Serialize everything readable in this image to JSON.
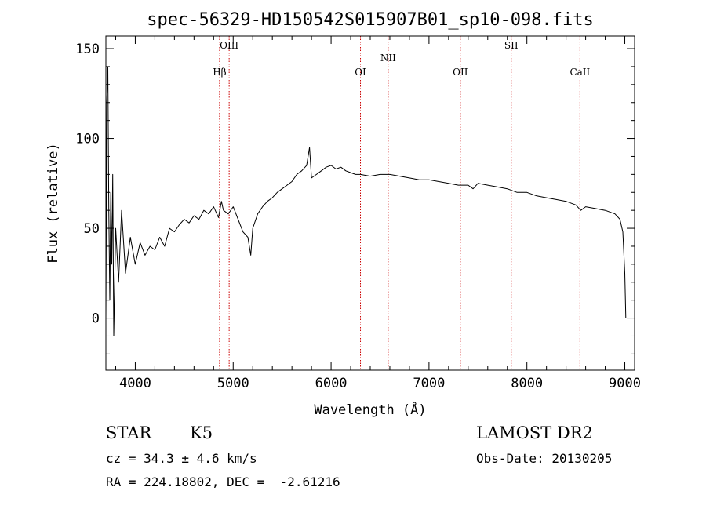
{
  "chart_data": {
    "type": "line",
    "title": "spec-56329-HD150542S015907B01_sp10-098.fits",
    "xlabel": "Wavelength (Å)",
    "ylabel": "Flux (relative)",
    "xlim": [
      3700,
      9100
    ],
    "ylim": [
      -29,
      157
    ],
    "xticks": [
      4000,
      5000,
      6000,
      7000,
      8000,
      9000
    ],
    "yticks": [
      0,
      50,
      100,
      150
    ],
    "grid": false,
    "line_color": "#000000",
    "marker_color": "#cc0000",
    "series": [
      {
        "x": [
          3700,
          3710,
          3720,
          3730,
          3740,
          3750,
          3760,
          3770,
          3780,
          3800,
          3830,
          3860,
          3900,
          3950,
          4000,
          4050,
          4100,
          4150,
          4200,
          4250,
          4300,
          4350,
          4400,
          4450,
          4500,
          4550,
          4600,
          4650,
          4700,
          4750,
          4800,
          4850,
          4880,
          4900,
          4950,
          5000,
          5050,
          5100,
          5150,
          5180,
          5200,
          5250,
          5300,
          5350,
          5400,
          5450,
          5500,
          5550,
          5600,
          5650,
          5700,
          5750,
          5780,
          5800,
          5850,
          5900,
          5950,
          6000,
          6050,
          6100,
          6150,
          6200,
          6250,
          6300,
          6400,
          6500,
          6600,
          6700,
          6800,
          6900,
          7000,
          7100,
          7200,
          7300,
          7400,
          7450,
          7500,
          7600,
          7700,
          7800,
          7900,
          8000,
          8100,
          8200,
          8300,
          8400,
          8500,
          8550,
          8600,
          8700,
          8800,
          8900,
          8950,
          8980,
          9000,
          9010
        ],
        "y": [
          0,
          120,
          140,
          60,
          10,
          70,
          30,
          80,
          -10,
          50,
          20,
          60,
          25,
          45,
          30,
          42,
          35,
          40,
          38,
          45,
          40,
          50,
          48,
          52,
          55,
          53,
          57,
          55,
          60,
          58,
          62,
          56,
          65,
          60,
          58,
          62,
          55,
          48,
          45,
          35,
          50,
          58,
          62,
          65,
          67,
          70,
          72,
          74,
          76,
          80,
          82,
          85,
          95,
          78,
          80,
          82,
          84,
          85,
          83,
          84,
          82,
          81,
          80,
          80,
          79,
          80,
          80,
          79,
          78,
          77,
          77,
          76,
          75,
          74,
          74,
          72,
          75,
          74,
          73,
          72,
          70,
          70,
          68,
          67,
          66,
          65,
          63,
          60,
          62,
          61,
          60,
          58,
          55,
          48,
          25,
          0
        ]
      }
    ],
    "line_markers": [
      {
        "name": "Hβ",
        "x": 4861,
        "label_row": "low"
      },
      {
        "name": "OIII",
        "x": 4959,
        "label_row": "high"
      },
      {
        "name": "OI",
        "x": 6300,
        "label_row": "low"
      },
      {
        "name": "NII",
        "x": 6583,
        "label_row": "mid"
      },
      {
        "name": "OII",
        "x": 7320,
        "label_row": "low"
      },
      {
        "name": "SII",
        "x": 7840,
        "label_row": "high"
      },
      {
        "name": "CaII",
        "x": 8542,
        "label_row": "low"
      }
    ]
  },
  "info": {
    "object_class": "STAR",
    "subclass": "K5",
    "catalog": "LAMOST DR2",
    "cz": "cz = 34.3 ± 4.6 km/s",
    "obs_date": "Obs-Date: 20130205",
    "coords": "RA = 224.18802, DEC =  -2.61216"
  }
}
